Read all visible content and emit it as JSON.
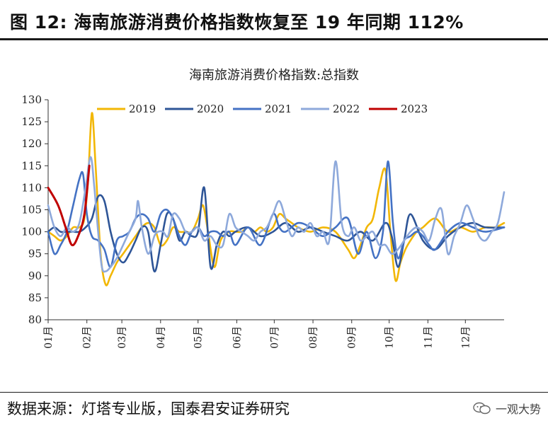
{
  "figure": {
    "title": "图 12: 海南旅游消费价格指数恢复至 19 年同期 112%",
    "source": "数据来源：灯塔专业版，国泰君安证券研究",
    "watermark": "一观大势",
    "watermark_icon": "wechat-icon"
  },
  "chart_data": {
    "type": "line",
    "title": "海南旅游消费价格指数:总指数",
    "xlabel": "",
    "ylabel": "",
    "ylim": [
      80,
      130
    ],
    "yticks": [
      80,
      85,
      90,
      95,
      100,
      105,
      110,
      115,
      120,
      125,
      130
    ],
    "x_range": [
      0,
      365
    ],
    "xticks": [
      {
        "label": "01月",
        "day": 0
      },
      {
        "label": "02月",
        "day": 31
      },
      {
        "label": "03月",
        "day": 59
      },
      {
        "label": "04月",
        "day": 90
      },
      {
        "label": "05月",
        "day": 120
      },
      {
        "label": "06月",
        "day": 151
      },
      {
        "label": "07月",
        "day": 181
      },
      {
        "label": "08月",
        "day": 212
      },
      {
        "label": "09月",
        "day": 243
      },
      {
        "label": "10月",
        "day": 273
      },
      {
        "label": "11月",
        "day": 304
      },
      {
        "label": "12月",
        "day": 334
      }
    ],
    "grid": false,
    "legend_position": "top",
    "series": [
      {
        "name": "2019",
        "color": "#F2B705",
        "x": [
          0,
          5,
          10,
          15,
          20,
          25,
          29,
          32,
          35,
          38,
          42,
          46,
          50,
          55,
          60,
          65,
          70,
          75,
          80,
          85,
          90,
          95,
          100,
          105,
          110,
          115,
          120,
          124,
          128,
          133,
          138,
          145,
          150,
          155,
          160,
          165,
          170,
          175,
          180,
          185,
          190,
          195,
          200,
          210,
          220,
          230,
          240,
          245,
          250,
          255,
          260,
          265,
          270,
          274,
          278,
          282,
          286,
          290,
          295,
          300,
          310,
          320,
          330,
          340,
          350,
          358,
          365
        ],
        "y": [
          100,
          99,
          98,
          99,
          101,
          101,
          103,
          112,
          127,
          115,
          95,
          88,
          90,
          93,
          95,
          97,
          99,
          101,
          102,
          101,
          97,
          98,
          101,
          100,
          100,
          100,
          103,
          106,
          100,
          92,
          98,
          100,
          100,
          100,
          101,
          100,
          101,
          100,
          101,
          104,
          103,
          102,
          101,
          100,
          101,
          100,
          96,
          94,
          97,
          101,
          103,
          110,
          114,
          100,
          89,
          93,
          96,
          98,
          100,
          101,
          103,
          100,
          101,
          100,
          101,
          101,
          102
        ]
      },
      {
        "name": "2020",
        "color": "#2E5597",
        "x": [
          0,
          5,
          10,
          15,
          20,
          25,
          30,
          35,
          40,
          45,
          50,
          55,
          60,
          65,
          70,
          75,
          80,
          85,
          90,
          95,
          100,
          105,
          110,
          115,
          120,
          125,
          130,
          135,
          140,
          145,
          150,
          160,
          170,
          180,
          190,
          200,
          210,
          220,
          230,
          240,
          250,
          260,
          270,
          275,
          280,
          285,
          290,
          300,
          310,
          320,
          330,
          340,
          350,
          365
        ],
        "y": [
          100,
          101,
          100,
          100,
          100,
          100,
          101,
          103,
          108,
          107,
          100,
          95,
          93,
          95,
          98,
          101,
          100,
          91,
          97,
          104,
          103,
          98,
          100,
          99,
          100,
          110,
          92,
          97,
          100,
          99,
          100,
          101,
          99,
          100,
          102,
          100,
          101,
          100,
          99,
          98,
          100,
          98,
          102,
          99,
          92,
          98,
          104,
          98,
          96,
          99,
          101,
          102,
          101,
          101
        ]
      },
      {
        "name": "2021",
        "color": "#4472C4",
        "x": [
          0,
          5,
          10,
          15,
          20,
          25,
          28,
          31,
          35,
          40,
          45,
          50,
          55,
          60,
          65,
          70,
          75,
          80,
          85,
          90,
          95,
          100,
          105,
          110,
          115,
          120,
          125,
          130,
          135,
          140,
          145,
          150,
          160,
          170,
          180,
          185,
          190,
          200,
          210,
          220,
          230,
          240,
          248,
          255,
          262,
          268,
          272,
          276,
          280,
          285,
          290,
          295,
          300,
          305,
          310,
          320,
          330,
          340,
          350,
          365
        ],
        "y": [
          100,
          95,
          97,
          100,
          106,
          112,
          113,
          104,
          99,
          98,
          96,
          92,
          98,
          99,
          100,
          103,
          104,
          103,
          100,
          104,
          105,
          103,
          99,
          97,
          100,
          101,
          99,
          100,
          100,
          99,
          100,
          97,
          101,
          97,
          104,
          101,
          100,
          102,
          101,
          99,
          101,
          103,
          95,
          100,
          94,
          100,
          116,
          102,
          94,
          98,
          99,
          100,
          99,
          97,
          96,
          100,
          102,
          101,
          100,
          101
        ]
      },
      {
        "name": "2022",
        "color": "#8EA9DB",
        "x": [
          0,
          5,
          10,
          15,
          20,
          25,
          30,
          34,
          37,
          40,
          43,
          46,
          50,
          55,
          60,
          65,
          70,
          72,
          75,
          80,
          85,
          88,
          92,
          96,
          100,
          105,
          110,
          115,
          120,
          125,
          130,
          135,
          140,
          145,
          150,
          155,
          160,
          165,
          170,
          175,
          180,
          185,
          190,
          195,
          200,
          205,
          210,
          215,
          220,
          225,
          230,
          235,
          240,
          245,
          250,
          255,
          260,
          265,
          270,
          275,
          280,
          285,
          290,
          295,
          300,
          305,
          310,
          315,
          320,
          325,
          330,
          335,
          340,
          345,
          350,
          355,
          360,
          365
        ],
        "y": [
          106,
          101,
          99,
          101,
          100,
          102,
          110,
          117,
          110,
          100,
          92,
          91,
          92,
          94,
          97,
          100,
          103,
          107,
          101,
          95,
          99,
          100,
          100,
          99,
          104,
          103,
          100,
          100,
          101,
          98,
          99,
          97,
          97,
          104,
          101,
          100,
          99,
          98,
          100,
          101,
          104,
          107,
          103,
          99,
          101,
          100,
          102,
          99,
          100,
          98,
          116,
          102,
          99,
          101,
          98,
          99,
          100,
          97,
          97,
          95,
          96,
          98,
          100,
          101,
          100,
          98,
          103,
          105,
          95,
          99,
          102,
          106,
          103,
          99,
          98,
          100,
          102,
          109
        ]
      },
      {
        "name": "2023",
        "color": "#C00000",
        "x": [
          0,
          8,
          14,
          19,
          24,
          29,
          33
        ],
        "y": [
          110,
          106,
          101,
          97,
          99,
          104,
          115
        ]
      }
    ]
  }
}
